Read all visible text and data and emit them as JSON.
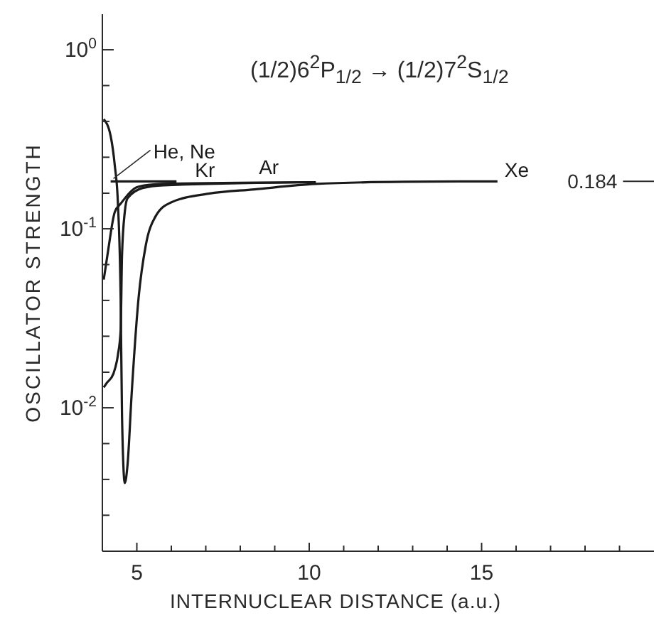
{
  "chart_data": {
    "type": "line",
    "title": "(1/2)6$^{2}$P$_{1/2}$ → (1/2)7$^{2}$S$_{1/2}$",
    "xlabel": "INTERNUCLEAR DISTANCE (a.u.)",
    "ylabel": "OSCILLATOR STRENGTH",
    "log": "y",
    "xlim": [
      4,
      20
    ],
    "ylim": [
      0.00158,
      1.58
    ],
    "xticks": [
      5,
      {
        "value": 6,
        "label": null
      },
      {
        "value": 7,
        "label": null
      },
      {
        "value": 8,
        "label": null
      },
      {
        "value": 9,
        "label": null
      },
      10,
      {
        "value": 11,
        "label": null
      },
      {
        "value": 12,
        "label": null
      },
      {
        "value": 13,
        "label": null
      },
      {
        "value": 14,
        "label": null
      },
      15,
      {
        "value": 16,
        "label": null
      },
      {
        "value": 17,
        "label": null
      },
      {
        "value": 18,
        "label": null
      },
      {
        "value": 19,
        "label": null
      }
    ],
    "yticks": [
      {
        "value": 1,
        "label": "10$^{0}$"
      },
      {
        "value": 0.631,
        "label": null
      },
      {
        "value": 0.398,
        "label": null
      },
      {
        "value": 0.251,
        "label": null
      },
      {
        "value": 0.158,
        "label": null
      },
      {
        "value": 0.1,
        "label": "10$^{-1}$"
      },
      {
        "value": 0.0631,
        "label": null
      },
      {
        "value": 0.0398,
        "label": null
      },
      {
        "value": 0.0251,
        "label": null
      },
      {
        "value": 0.0158,
        "label": null
      },
      {
        "value": 0.01,
        "label": "10$^{-2}$"
      },
      {
        "value": 0.00631,
        "label": null
      },
      {
        "value": 0.00398,
        "label": null
      },
      {
        "value": 0.00251,
        "label": null
      }
    ],
    "ref_lines": [
      {
        "axis": "y",
        "value": 0.184,
        "label": "0.184"
      }
    ],
    "series": [
      {
        "name": "He, Ne",
        "color": "#1a1a1a",
        "x": [
          4.24,
          6.15
        ],
        "values": [
          0.184,
          0.184
        ]
      },
      {
        "name": "Ar",
        "color": "#1a1a1a",
        "x": [
          4.04,
          4.16,
          4.36,
          4.53,
          5.05,
          5.74,
          10.19
        ],
        "values": [
          0.052,
          0.074,
          0.124,
          0.138,
          0.172,
          0.178,
          0.182
        ]
      },
      {
        "name": "Kr",
        "color": "#1a1a1a",
        "x": [
          4.04,
          4.12,
          4.32,
          4.45,
          4.53,
          4.57,
          4.65,
          4.73,
          5.17,
          5.78,
          10.19
        ],
        "values": [
          0.013,
          0.0137,
          0.0155,
          0.0197,
          0.027,
          0.071,
          0.124,
          0.148,
          0.169,
          0.175,
          0.182
        ]
      },
      {
        "name": "Xe",
        "color": "#1a1a1a",
        "x": [
          4.04,
          4.24,
          4.36,
          4.45,
          4.53,
          4.57,
          4.65,
          4.73,
          4.85,
          5.05,
          5.26,
          5.54,
          5.98,
          7.08,
          8.41,
          10.19,
          12.74,
          15.46
        ],
        "values": [
          0.41,
          0.33,
          0.226,
          0.14,
          0.041,
          0.009,
          0.0038,
          0.0048,
          0.012,
          0.041,
          0.081,
          0.117,
          0.14,
          0.157,
          0.166,
          0.178,
          0.183,
          0.184
        ]
      }
    ]
  }
}
